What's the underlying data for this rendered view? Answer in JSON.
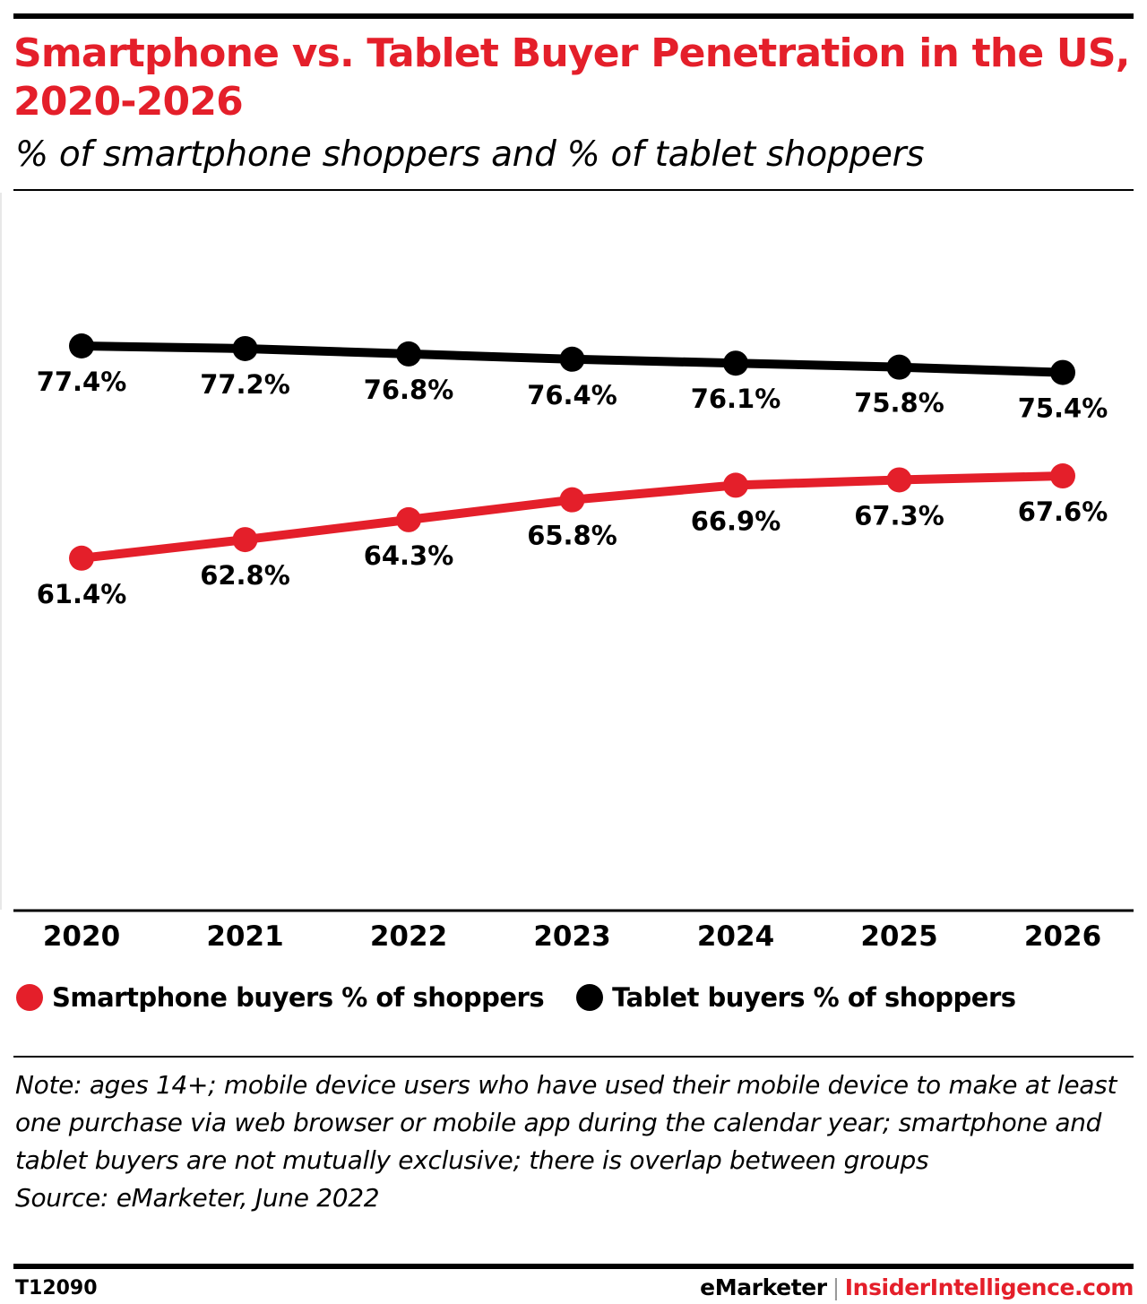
{
  "title": "Smartphone vs. Tablet Buyer Penetration in the US, 2020-2026",
  "subtitle": "% of smartphone shoppers and % of tablet shoppers",
  "colors": {
    "smartphone": "#e41f2a",
    "tablet": "#000000",
    "title": "#e41f2a"
  },
  "chart_data": {
    "type": "line",
    "categories": [
      "2020",
      "2021",
      "2022",
      "2023",
      "2024",
      "2025",
      "2026"
    ],
    "series": [
      {
        "name": "Tablet buyers % of shoppers",
        "color": "#000000",
        "values": [
          77.4,
          77.2,
          76.8,
          76.4,
          76.1,
          75.8,
          75.4
        ],
        "labels": [
          "77.4%",
          "77.2%",
          "76.8%",
          "76.4%",
          "76.1%",
          "75.8%",
          "75.4%"
        ]
      },
      {
        "name": "Smartphone buyers % of shoppers",
        "color": "#e41f2a",
        "values": [
          61.4,
          62.8,
          64.3,
          65.8,
          66.9,
          67.3,
          67.6
        ],
        "labels": [
          "61.4%",
          "62.8%",
          "64.3%",
          "65.8%",
          "66.9%",
          "67.3%",
          "67.6%"
        ]
      }
    ],
    "xlabel": "",
    "ylabel": "",
    "grid": false,
    "legend_position": "bottom-left"
  },
  "legend": {
    "smartphone_label": "Smartphone buyers % of shoppers",
    "tablet_label": "Tablet buyers % of shoppers"
  },
  "note": {
    "text": "Note: ages 14+; mobile device users who have used their mobile device to make at least one purchase via web browser or mobile app during the calendar year; smartphone and tablet buyers are not mutually exclusive; there is overlap between groups",
    "source": "Source: eMarketer, June 2022"
  },
  "footer": {
    "chart_id": "T12090",
    "brand_primary": "eMarketer",
    "separator": "|",
    "brand_secondary": "InsiderIntelligence.com"
  }
}
